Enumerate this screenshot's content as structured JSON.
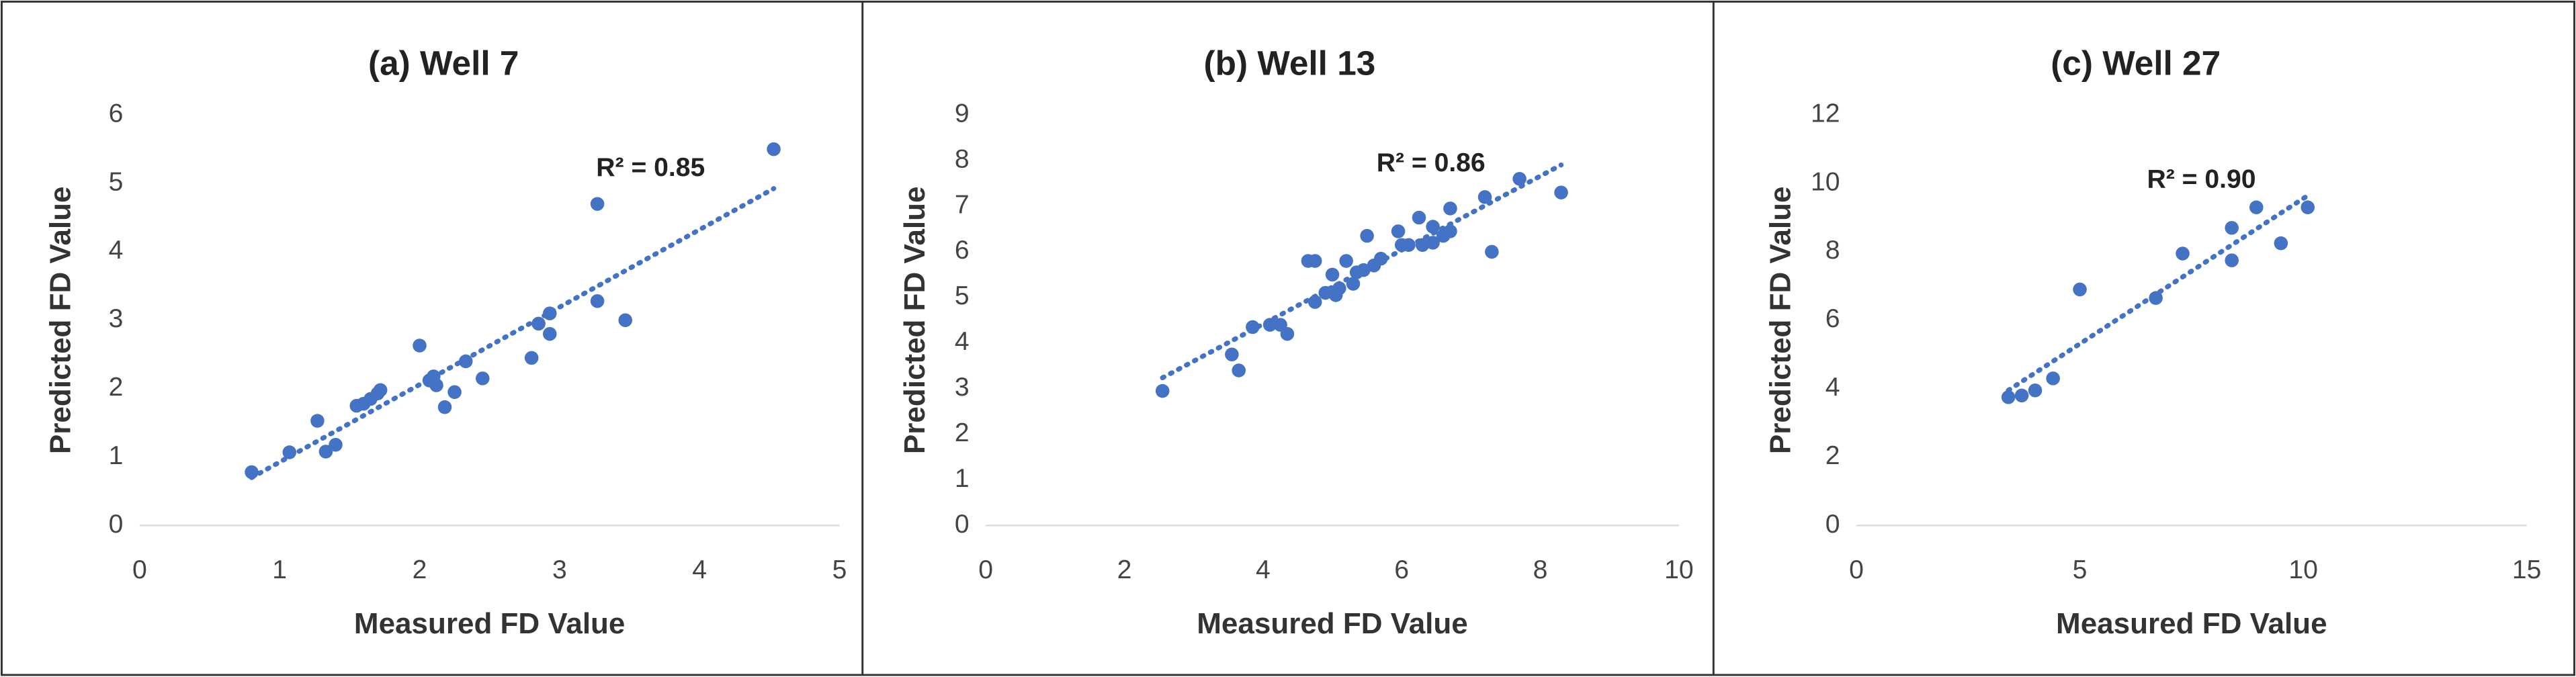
{
  "chart_data": [
    {
      "type": "scatter",
      "title": "(a) Well 7",
      "x_label": "Measured FD Value",
      "y_label": "Predicted FD Value",
      "annotation": "R² = 0.85",
      "color": "#4472c4",
      "trendline": "linear",
      "x": [
        0.8,
        1.07,
        1.27,
        1.33,
        1.4,
        1.55,
        1.6,
        1.65,
        1.7,
        1.72,
        2.0,
        2.07,
        2.1,
        2.12,
        2.18,
        2.25,
        2.33,
        2.45,
        2.8,
        2.85,
        2.93,
        2.93,
        3.27,
        3.27,
        3.47,
        4.53
      ],
      "values": [
        0.78,
        1.07,
        1.53,
        1.08,
        1.18,
        1.75,
        1.78,
        1.85,
        1.93,
        1.98,
        2.63,
        2.12,
        2.18,
        2.05,
        1.73,
        1.95,
        2.4,
        2.15,
        2.45,
        2.95,
        3.1,
        2.8,
        4.7,
        3.28,
        3.0,
        5.5
      ],
      "xlim": [
        0,
        5
      ],
      "xticks": [
        0,
        1,
        2,
        3,
        4,
        5
      ],
      "ylim": [
        0,
        6
      ],
      "yticks": [
        0,
        1,
        2,
        3,
        4,
        5,
        6
      ],
      "grid": false
    },
    {
      "type": "scatter",
      "title": "(b) Well 13",
      "x_label": "Measured FD Value",
      "y_label": "Predicted FD Value",
      "annotation": "R² = 0.86",
      "color": "#4472c4",
      "trendline": "linear",
      "x": [
        2.55,
        3.55,
        3.65,
        3.85,
        4.1,
        4.25,
        4.35,
        4.65,
        4.75,
        4.75,
        4.9,
        5.0,
        5.05,
        5.1,
        5.2,
        5.3,
        5.35,
        5.45,
        5.5,
        5.6,
        5.7,
        5.95,
        6.0,
        6.1,
        6.25,
        6.3,
        6.45,
        6.45,
        6.6,
        6.7,
        6.7,
        7.2,
        7.3,
        7.7,
        8.3
      ],
      "values": [
        2.95,
        3.75,
        3.4,
        4.35,
        4.4,
        4.4,
        4.2,
        5.8,
        5.8,
        4.9,
        5.1,
        5.5,
        5.05,
        5.2,
        5.8,
        5.3,
        5.55,
        5.6,
        6.35,
        5.7,
        5.85,
        6.45,
        6.15,
        6.15,
        6.75,
        6.15,
        6.2,
        6.55,
        6.35,
        6.45,
        6.95,
        7.2,
        6.0,
        7.6,
        7.3
      ],
      "xlim": [
        0,
        10
      ],
      "xticks": [
        0,
        2,
        4,
        6,
        8,
        10
      ],
      "ylim": [
        0,
        9
      ],
      "yticks": [
        0,
        1,
        2,
        3,
        4,
        5,
        6,
        7,
        8,
        9
      ],
      "grid": false
    },
    {
      "type": "scatter",
      "title": "(c) Well 27",
      "x_label": "Measured FD Value",
      "y_label": "Predicted FD Value",
      "annotation": "R² = 0.90",
      "color": "#4472c4",
      "trendline": "linear",
      "x": [
        3.4,
        3.7,
        4.0,
        4.4,
        5.0,
        6.7,
        7.3,
        8.4,
        8.4,
        8.95,
        9.5,
        10.1
      ],
      "values": [
        3.75,
        3.8,
        3.95,
        4.3,
        6.9,
        6.65,
        7.95,
        8.7,
        7.75,
        9.3,
        8.25,
        9.3
      ],
      "xlim": [
        0,
        15
      ],
      "xticks": [
        0,
        5,
        10,
        15
      ],
      "ylim": [
        0,
        12
      ],
      "yticks": [
        0,
        2,
        4,
        6,
        8,
        10,
        12
      ],
      "grid": false
    }
  ]
}
